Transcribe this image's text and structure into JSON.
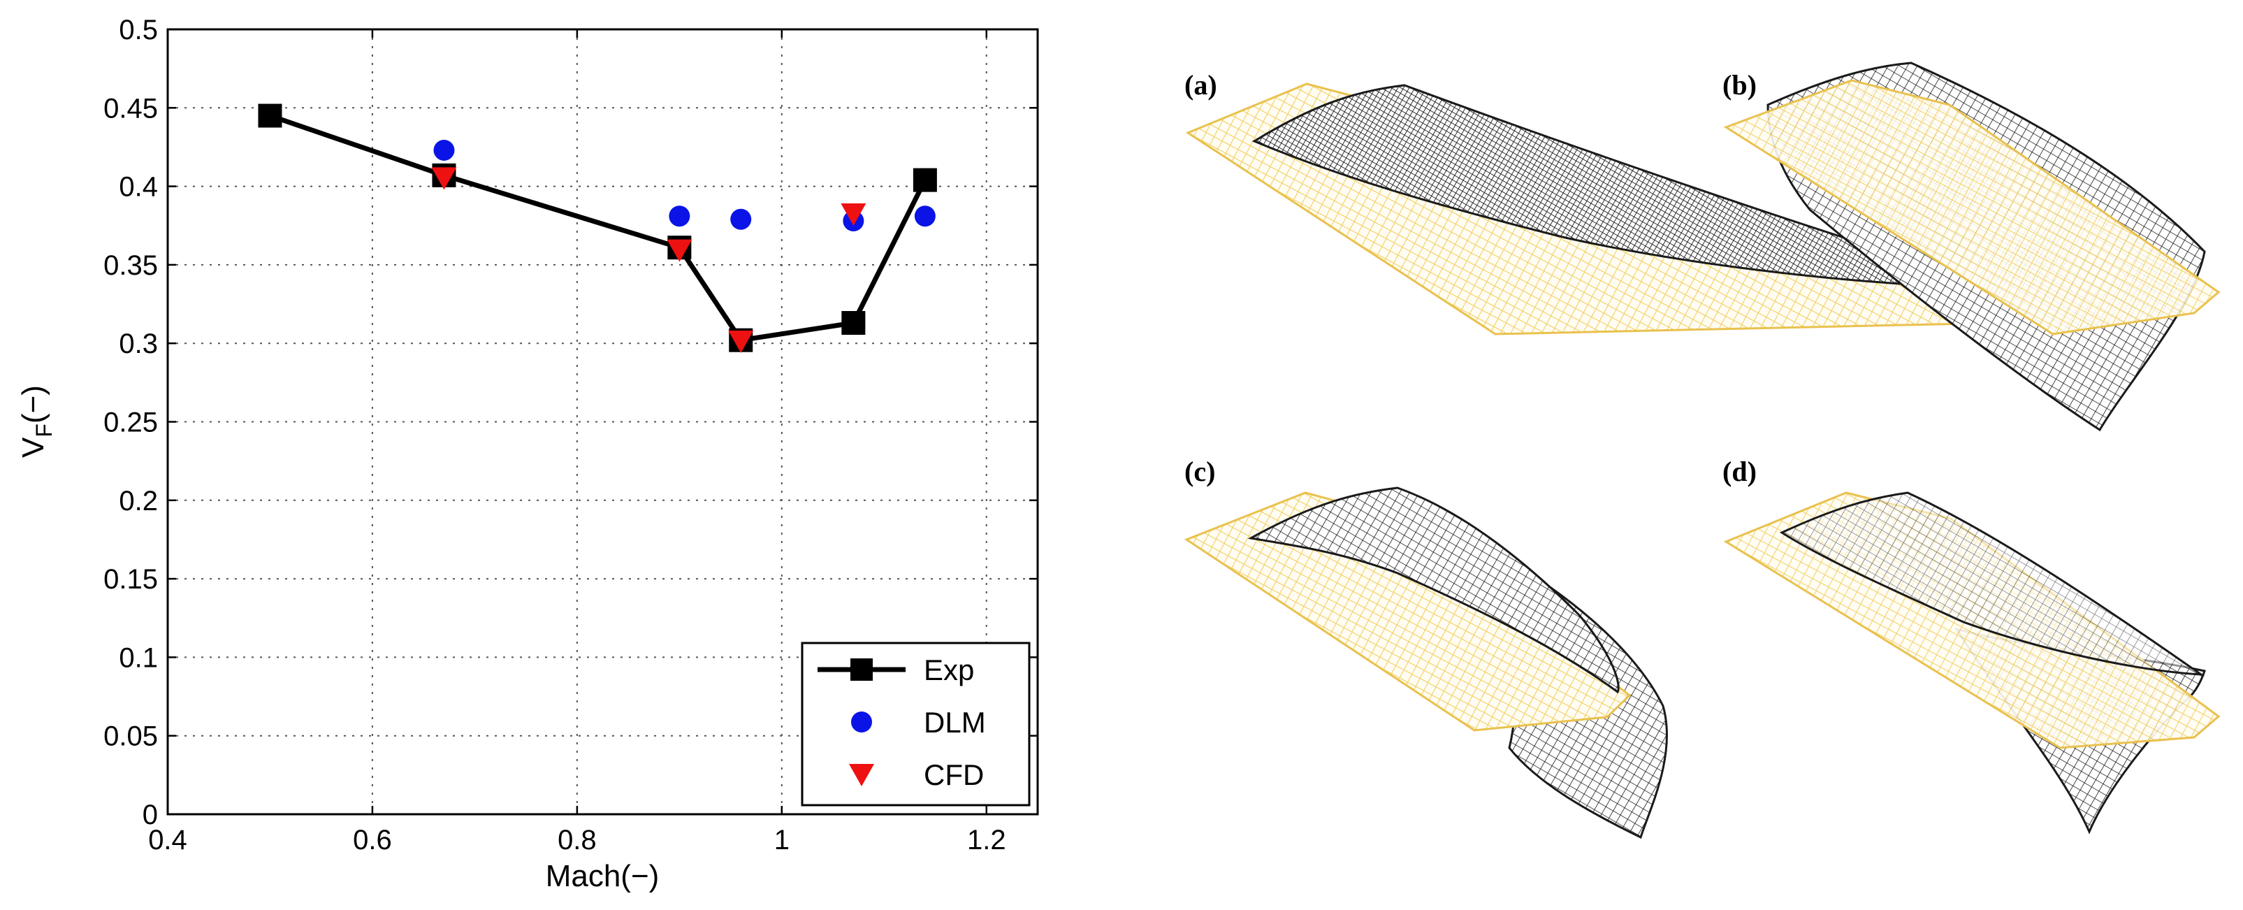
{
  "chart_data": {
    "type": "line",
    "xlabel": "Mach(−)",
    "ylabel_main": "V",
    "ylabel_sub": "F",
    "ylabel_tail": "(−)",
    "xlim": [
      0.4,
      1.25
    ],
    "ylim": [
      0,
      0.5
    ],
    "x_ticks": [
      0.4,
      0.6,
      0.8,
      1.0,
      1.2
    ],
    "x_tick_labels": [
      "0.4",
      "0.6",
      "0.8",
      "1",
      "1.2"
    ],
    "y_ticks": [
      0,
      0.05,
      0.1,
      0.15,
      0.2,
      0.25,
      0.3,
      0.35,
      0.4,
      0.45,
      0.5
    ],
    "y_tick_labels": [
      "0",
      "0.05",
      "0.1",
      "0.15",
      "0.2",
      "0.25",
      "0.3",
      "0.35",
      "0.4",
      "0.45",
      "0.5"
    ],
    "grid": true,
    "legend_position": "bottom-right",
    "series": [
      {
        "name": "Exp",
        "style": "line-square",
        "color": "#000000",
        "x": [
          0.5,
          0.67,
          0.9,
          0.96,
          1.07,
          1.14
        ],
        "y": [
          0.445,
          0.407,
          0.361,
          0.302,
          0.313,
          0.404
        ]
      },
      {
        "name": "DLM",
        "style": "circle",
        "color": "#0a14e6",
        "x": [
          0.67,
          0.9,
          0.96,
          1.07,
          1.14
        ],
        "y": [
          0.423,
          0.381,
          0.379,
          0.378,
          0.381
        ]
      },
      {
        "name": "CFD",
        "style": "triangle-down",
        "color": "#ee1111",
        "x": [
          0.67,
          0.9,
          0.96,
          1.07
        ],
        "y": [
          0.405,
          0.359,
          0.301,
          0.382
        ]
      }
    ]
  },
  "panels": {
    "a": {
      "label": "(a)"
    },
    "b": {
      "label": "(b)"
    },
    "c": {
      "label": "(c)"
    },
    "d": {
      "label": "(d)"
    }
  },
  "colors": {
    "undeformed_wing": "#f2cf63",
    "deformed_wing": "#1a1a1a"
  }
}
